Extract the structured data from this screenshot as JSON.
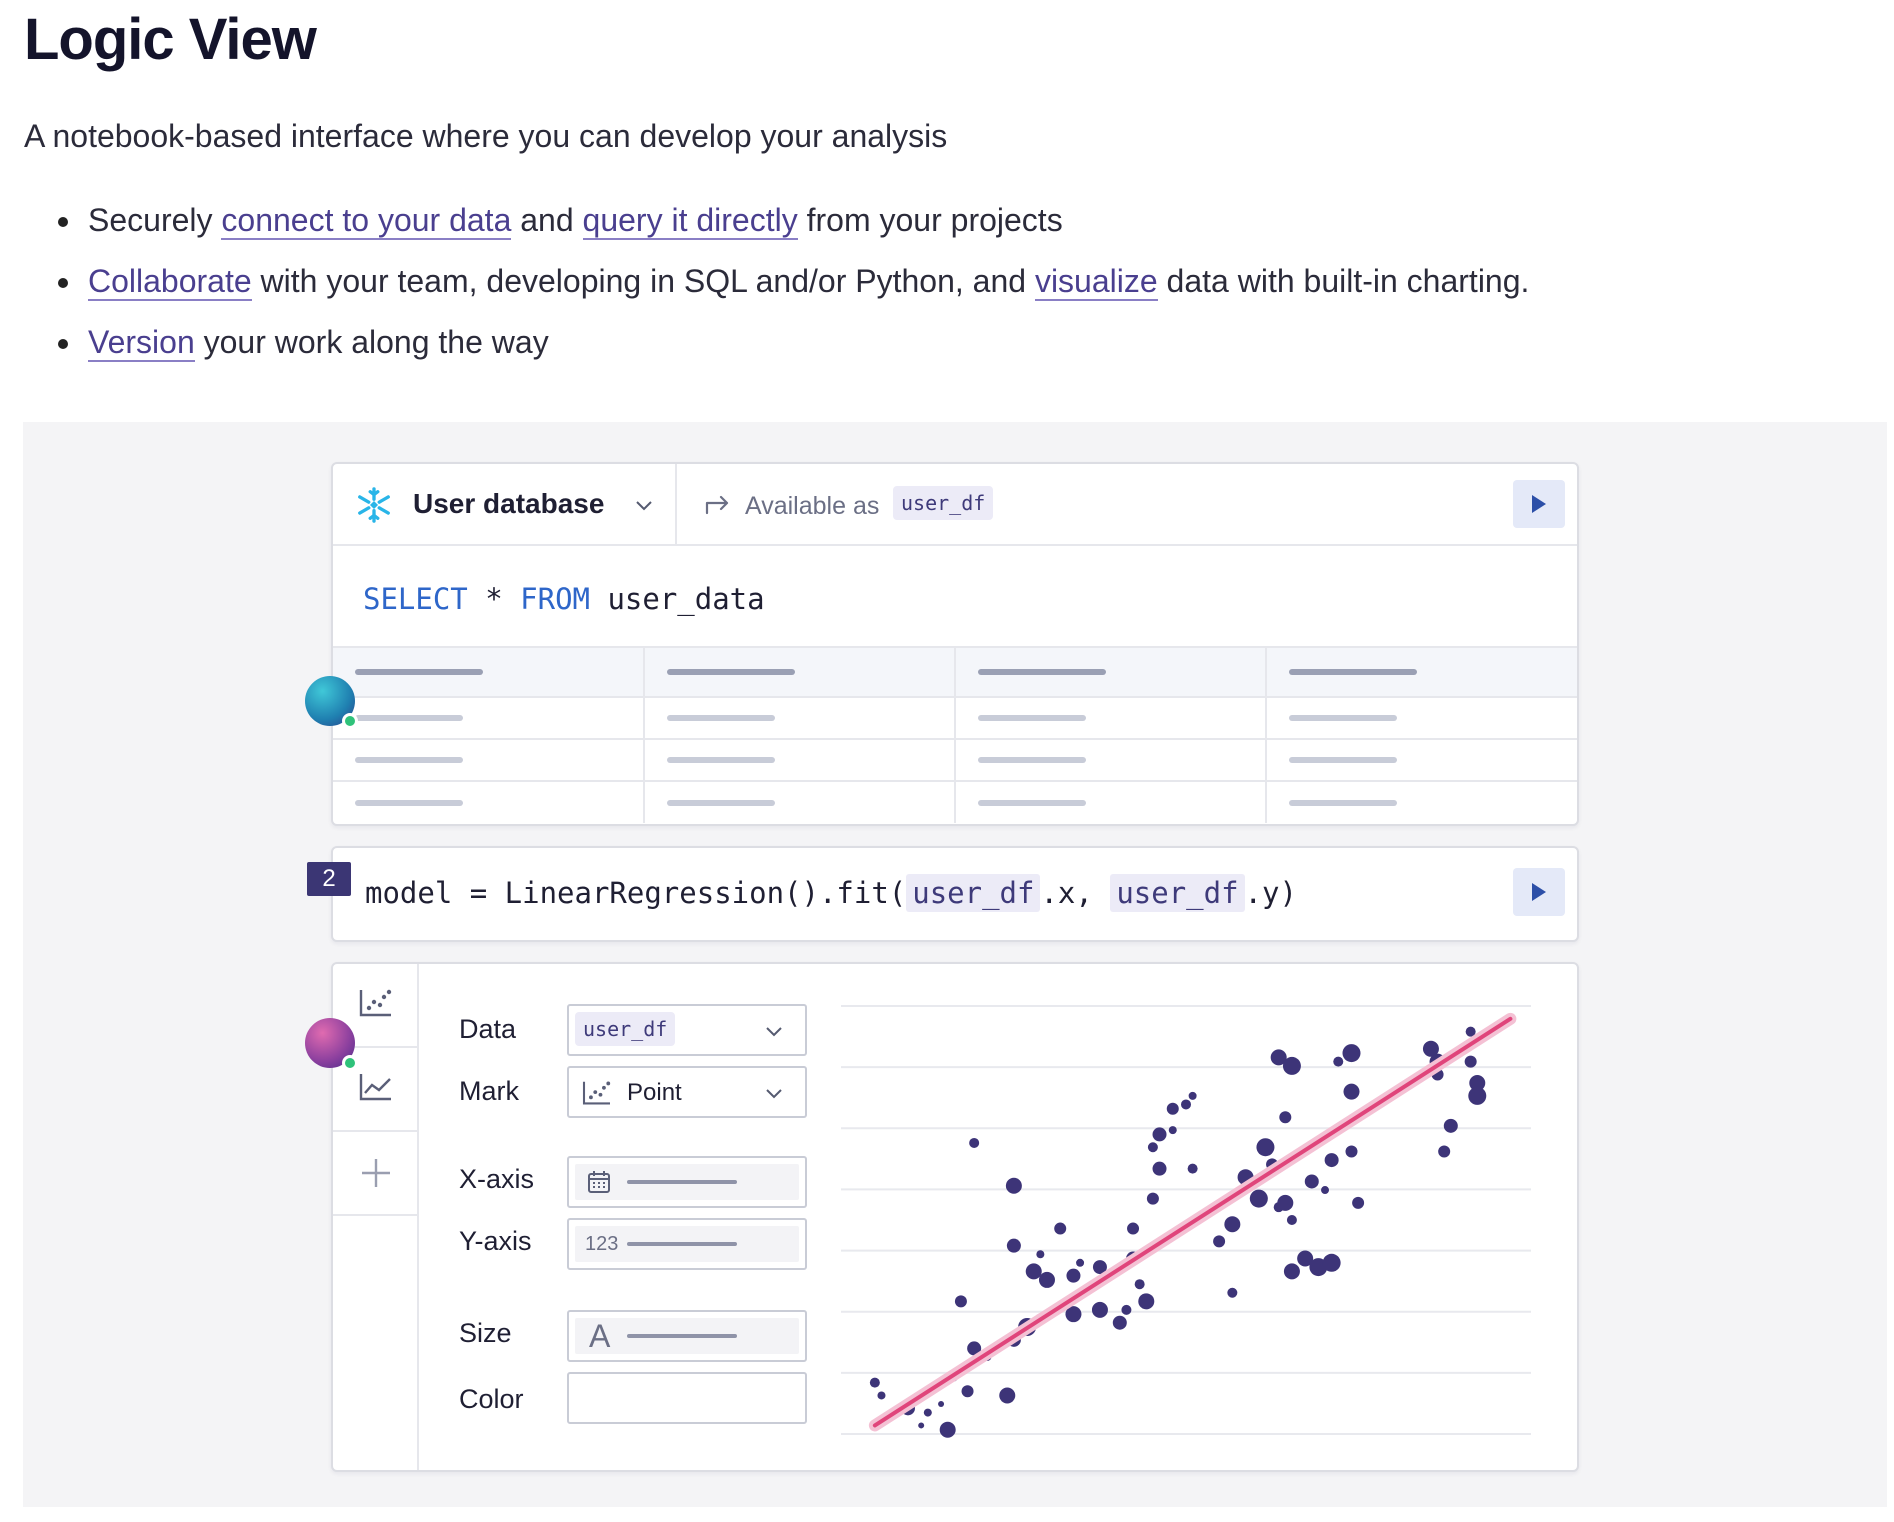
{
  "header": {
    "title": "Logic View",
    "subtitle": "A notebook-based interface where you can develop your analysis"
  },
  "bullets": [
    {
      "pre": "Securely ",
      "link1": "connect to your data",
      "mid": " and ",
      "link2": "query it directly",
      "post": " from your projects"
    },
    {
      "link1": "Collaborate",
      "mid": " with your team, developing in SQL and/or Python, and ",
      "link2": "visualize",
      "post": " data with built-in charting."
    },
    {
      "link1": "Version",
      "post": " your work along the way"
    }
  ],
  "sql_cell": {
    "db_name": "User database",
    "available_as": "Available as",
    "df_tag": "user_df",
    "query_kw1": "SELECT",
    "query_star": " * ",
    "query_kw2": "FROM",
    "query_table": " user_data"
  },
  "py_cell": {
    "number": "2",
    "code_a": "model = LinearRegression().fit(",
    "var1": "user_df",
    "code_b": ".x, ",
    "var2": "user_df",
    "code_c": ".y)"
  },
  "chart_cell": {
    "labels": {
      "data": "Data",
      "mark": "Mark",
      "xaxis": "X-axis",
      "yaxis": "Y-axis",
      "size": "Size",
      "color": "Color"
    },
    "data_value": "user_df",
    "mark_value": "Point",
    "yaxis_type": "123",
    "size_type": "A"
  },
  "colors": {
    "accent": "#4a3f8f",
    "point": "#3d3478",
    "trendline": "#e0457b",
    "snowflake": "#29b5e8"
  },
  "chart_data": {
    "type": "scatter",
    "xlim": [
      0,
      100
    ],
    "ylim": [
      0,
      100
    ],
    "grid": true,
    "points": [
      [
        3,
        12,
        5
      ],
      [
        4,
        9,
        4
      ],
      [
        8,
        6,
        7
      ],
      [
        10,
        2,
        3
      ],
      [
        11,
        5,
        4
      ],
      [
        13,
        7,
        3
      ],
      [
        14,
        1,
        8
      ],
      [
        15,
        13,
        3
      ],
      [
        17,
        10,
        6
      ],
      [
        18,
        20,
        7
      ],
      [
        20,
        18,
        4
      ],
      [
        23,
        9,
        8
      ],
      [
        24,
        22,
        7
      ],
      [
        26,
        25,
        9
      ],
      [
        27,
        38,
        8
      ],
      [
        24,
        44,
        7
      ],
      [
        16,
        31,
        6
      ],
      [
        18,
        68,
        5
      ],
      [
        24,
        58,
        8
      ],
      [
        28,
        27,
        5
      ],
      [
        29,
        36,
        8
      ],
      [
        28,
        42,
        4
      ],
      [
        31,
        48,
        6
      ],
      [
        33,
        37,
        7
      ],
      [
        33,
        28,
        8
      ],
      [
        34,
        40,
        4
      ],
      [
        37,
        29,
        8
      ],
      [
        37,
        39,
        7
      ],
      [
        40,
        26,
        7
      ],
      [
        41,
        29,
        5
      ],
      [
        43,
        35,
        5
      ],
      [
        44,
        31,
        8
      ],
      [
        42,
        41,
        7
      ],
      [
        42,
        48,
        6
      ],
      [
        45,
        55,
        6
      ],
      [
        46,
        62,
        7
      ],
      [
        45,
        67,
        5
      ],
      [
        46,
        70,
        7
      ],
      [
        48,
        71,
        4
      ],
      [
        48,
        76,
        6
      ],
      [
        50,
        77,
        5
      ],
      [
        51,
        79,
        4
      ],
      [
        51,
        62,
        5
      ],
      [
        55,
        45,
        6
      ],
      [
        57,
        49,
        8
      ],
      [
        57,
        33,
        5
      ],
      [
        59,
        60,
        8
      ],
      [
        61,
        55,
        9
      ],
      [
        62,
        67,
        9
      ],
      [
        63,
        63,
        6
      ],
      [
        64,
        53,
        5
      ],
      [
        65,
        54,
        8
      ],
      [
        66,
        50,
        5
      ],
      [
        66,
        38,
        8
      ],
      [
        68,
        41,
        8
      ],
      [
        70,
        39,
        9
      ],
      [
        72,
        40,
        9
      ],
      [
        69,
        59,
        7
      ],
      [
        71,
        57,
        4
      ],
      [
        72,
        64,
        7
      ],
      [
        64,
        88,
        8
      ],
      [
        66,
        86,
        9
      ],
      [
        73,
        87,
        5
      ],
      [
        75,
        80,
        8
      ],
      [
        75,
        66,
        6
      ],
      [
        76,
        54,
        6
      ],
      [
        75,
        89,
        9
      ],
      [
        88,
        84,
        6
      ],
      [
        87,
        90,
        8
      ],
      [
        88,
        87,
        8
      ],
      [
        90,
        72,
        7
      ],
      [
        89,
        66,
        6
      ],
      [
        93,
        94,
        5
      ],
      [
        93,
        87,
        6
      ],
      [
        94,
        82,
        8
      ],
      [
        94,
        79,
        9
      ],
      [
        65,
        74,
        6
      ]
    ],
    "trend": {
      "x1": 3,
      "y1": 2,
      "x2": 99,
      "y2": 97
    }
  }
}
